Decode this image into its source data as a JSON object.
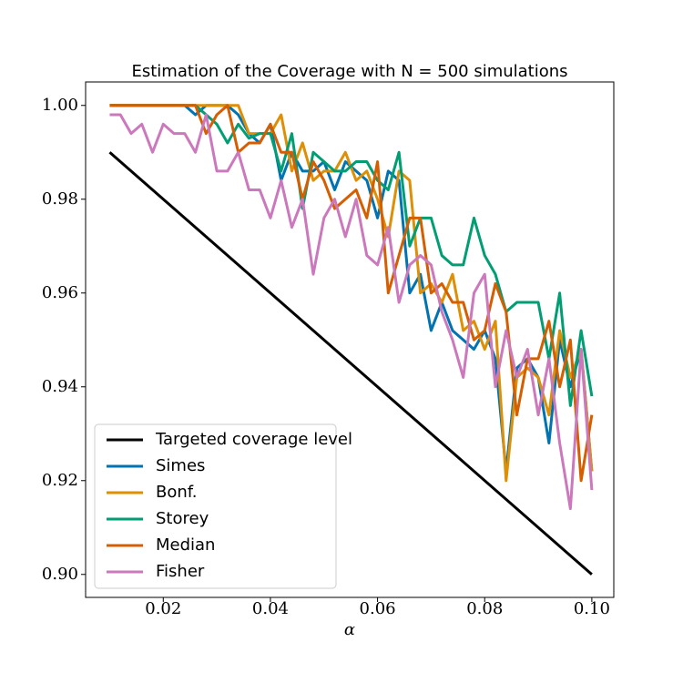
{
  "chart_data": {
    "type": "line",
    "title": "Estimation of the Coverage with N = 500 simulations",
    "xlabel": "α",
    "x": [
      0.01,
      0.012,
      0.014,
      0.016,
      0.018,
      0.02,
      0.022,
      0.024,
      0.026,
      0.028,
      0.03,
      0.032,
      0.034,
      0.036,
      0.038,
      0.04,
      0.042,
      0.044,
      0.046,
      0.048,
      0.05,
      0.052,
      0.054,
      0.056,
      0.058,
      0.06,
      0.062,
      0.064,
      0.066,
      0.068,
      0.07,
      0.072,
      0.074,
      0.076,
      0.078,
      0.08,
      0.082,
      0.084,
      0.086,
      0.088,
      0.09,
      0.092,
      0.094,
      0.096,
      0.098,
      0.1
    ],
    "xlim": [
      0.0055,
      0.1041
    ],
    "ylim": [
      0.8951,
      1.005
    ],
    "xticks": [
      0.02,
      0.04,
      0.06,
      0.08,
      {
        "value": 0.1,
        "label": "0.10"
      }
    ],
    "yticks": [
      {
        "value": 0.9,
        "label": "0.90"
      },
      0.92,
      0.94,
      0.96,
      0.98,
      {
        "value": 1,
        "label": "1.00"
      }
    ],
    "legend": "lower left",
    "series": [
      {
        "name": "Targeted coverage level",
        "color": "#000000",
        "x": [
          0.01,
          0.1
        ],
        "values": [
          0.99,
          0.9
        ]
      },
      {
        "name": "Simes",
        "color": "#0173b2",
        "values": [
          1,
          1,
          1,
          1,
          1,
          1,
          1,
          1,
          0.998,
          1,
          1,
          1,
          0.998,
          0.994,
          0.992,
          0.996,
          0.984,
          0.99,
          0.986,
          0.986,
          0.988,
          0.982,
          0.988,
          0.986,
          0.984,
          0.976,
          0.986,
          0.984,
          0.96,
          0.964,
          0.952,
          0.958,
          0.952,
          0.95,
          0.948,
          0.952,
          0.946,
          0.922,
          0.944,
          0.946,
          0.942,
          0.928,
          0.95,
          0.94,
          0.948,
          0.922
        ]
      },
      {
        "name": "Bonf.",
        "color": "#de8f05",
        "values": [
          1,
          1,
          1,
          1,
          1,
          1,
          1,
          1,
          1,
          1,
          1,
          1,
          1,
          0.994,
          0.994,
          0.994,
          0.998,
          0.986,
          0.992,
          0.984,
          0.986,
          0.986,
          0.99,
          0.984,
          0.986,
          0.98,
          0.972,
          0.986,
          0.984,
          0.96,
          0.962,
          0.958,
          0.964,
          0.952,
          0.954,
          0.948,
          0.954,
          0.92,
          0.942,
          0.944,
          0.942,
          0.934,
          0.952,
          0.942,
          0.948,
          0.922
        ]
      },
      {
        "name": "Storey",
        "color": "#029e73",
        "values": [
          1,
          1,
          1,
          1,
          1,
          1,
          1,
          1,
          1,
          0.998,
          0.996,
          0.992,
          0.996,
          0.993,
          0.994,
          0.994,
          0.986,
          0.994,
          0.978,
          0.99,
          0.988,
          0.986,
          0.986,
          0.988,
          0.988,
          0.984,
          0.982,
          0.99,
          0.97,
          0.976,
          0.976,
          0.968,
          0.966,
          0.966,
          0.976,
          0.968,
          0.964,
          0.956,
          0.958,
          0.958,
          0.958,
          0.946,
          0.96,
          0.936,
          0.952,
          0.938
        ]
      },
      {
        "name": "Median",
        "color": "#d55e00",
        "values": [
          1,
          1,
          1,
          1,
          1,
          1,
          1,
          1,
          1,
          0.994,
          0.998,
          1,
          0.99,
          0.992,
          0.992,
          0.996,
          0.99,
          0.99,
          0.98,
          0.988,
          0.984,
          0.978,
          0.98,
          0.982,
          0.976,
          0.988,
          0.96,
          0.968,
          0.976,
          0.976,
          0.96,
          0.962,
          0.958,
          0.958,
          0.95,
          0.952,
          0.962,
          0.956,
          0.934,
          0.946,
          0.946,
          0.954,
          0.94,
          0.95,
          0.92,
          0.934
        ]
      },
      {
        "name": "Fisher",
        "color": "#cc78bc",
        "values": [
          0.998,
          0.998,
          0.994,
          0.996,
          0.99,
          0.996,
          0.994,
          0.994,
          0.99,
          0.998,
          0.986,
          0.986,
          0.99,
          0.982,
          0.982,
          0.976,
          0.984,
          0.974,
          0.98,
          0.964,
          0.976,
          0.98,
          0.972,
          0.98,
          0.968,
          0.966,
          0.974,
          0.958,
          0.966,
          0.968,
          0.966,
          0.956,
          0.95,
          0.942,
          0.96,
          0.964,
          0.94,
          0.952,
          0.942,
          0.948,
          0.934,
          0.946,
          0.928,
          0.914,
          0.948,
          0.918
        ]
      }
    ]
  }
}
